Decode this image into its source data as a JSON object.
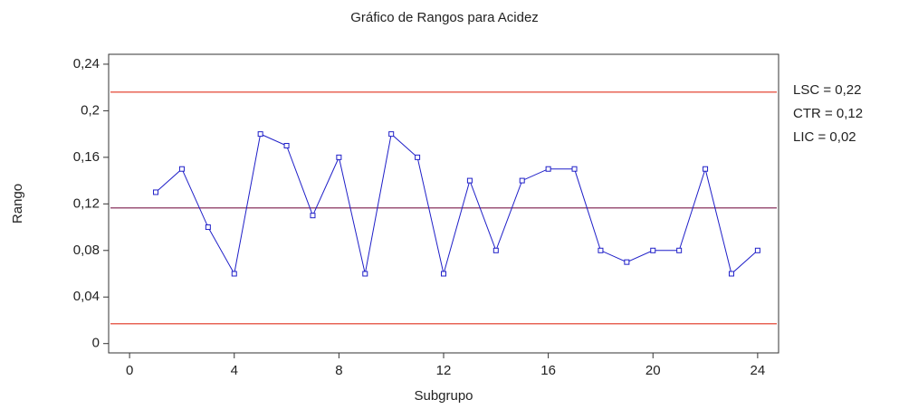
{
  "chart_data": {
    "type": "line",
    "title": "Gráfico de Rangos para Acidez",
    "xlabel": "Subgrupo",
    "ylabel": "Rango",
    "x": [
      1,
      2,
      3,
      4,
      5,
      6,
      7,
      8,
      9,
      10,
      11,
      12,
      13,
      14,
      15,
      16,
      17,
      18,
      19,
      20,
      21,
      22,
      23,
      24
    ],
    "series": [
      {
        "color": "#1f1fc8",
        "values": [
          0.13,
          0.15,
          0.1,
          0.06,
          0.18,
          0.17,
          0.11,
          0.16,
          0.06,
          0.18,
          0.16,
          0.06,
          0.14,
          0.08,
          0.14,
          0.15,
          0.15,
          0.08,
          0.07,
          0.08,
          0.08,
          0.15,
          0.06,
          0.08
        ]
      }
    ],
    "limits": [
      {
        "label": "LSC = 0,22",
        "value": 0.216,
        "color": "#e0301e"
      },
      {
        "label": "CTR = 0,12",
        "value": 0.1165,
        "color": "#7a1a4a"
      },
      {
        "label": "LIC = 0,02",
        "value": 0.017,
        "color": "#e0301e"
      }
    ],
    "xlim": [
      -0.8,
      24.8
    ],
    "ylim": [
      -0.008,
      0.2485
    ],
    "xticks": [
      0,
      4,
      8,
      12,
      16,
      20,
      24
    ],
    "yticks": [
      0,
      {
        "value": 0.04,
        "label": "0,04"
      },
      {
        "value": 0.08,
        "label": "0,08"
      },
      {
        "value": 0.12,
        "label": "0,12"
      },
      {
        "value": 0.16,
        "label": "0,16"
      },
      {
        "value": 0.2,
        "label": "0,2"
      },
      {
        "value": 0.24,
        "label": "0,24"
      }
    ]
  }
}
